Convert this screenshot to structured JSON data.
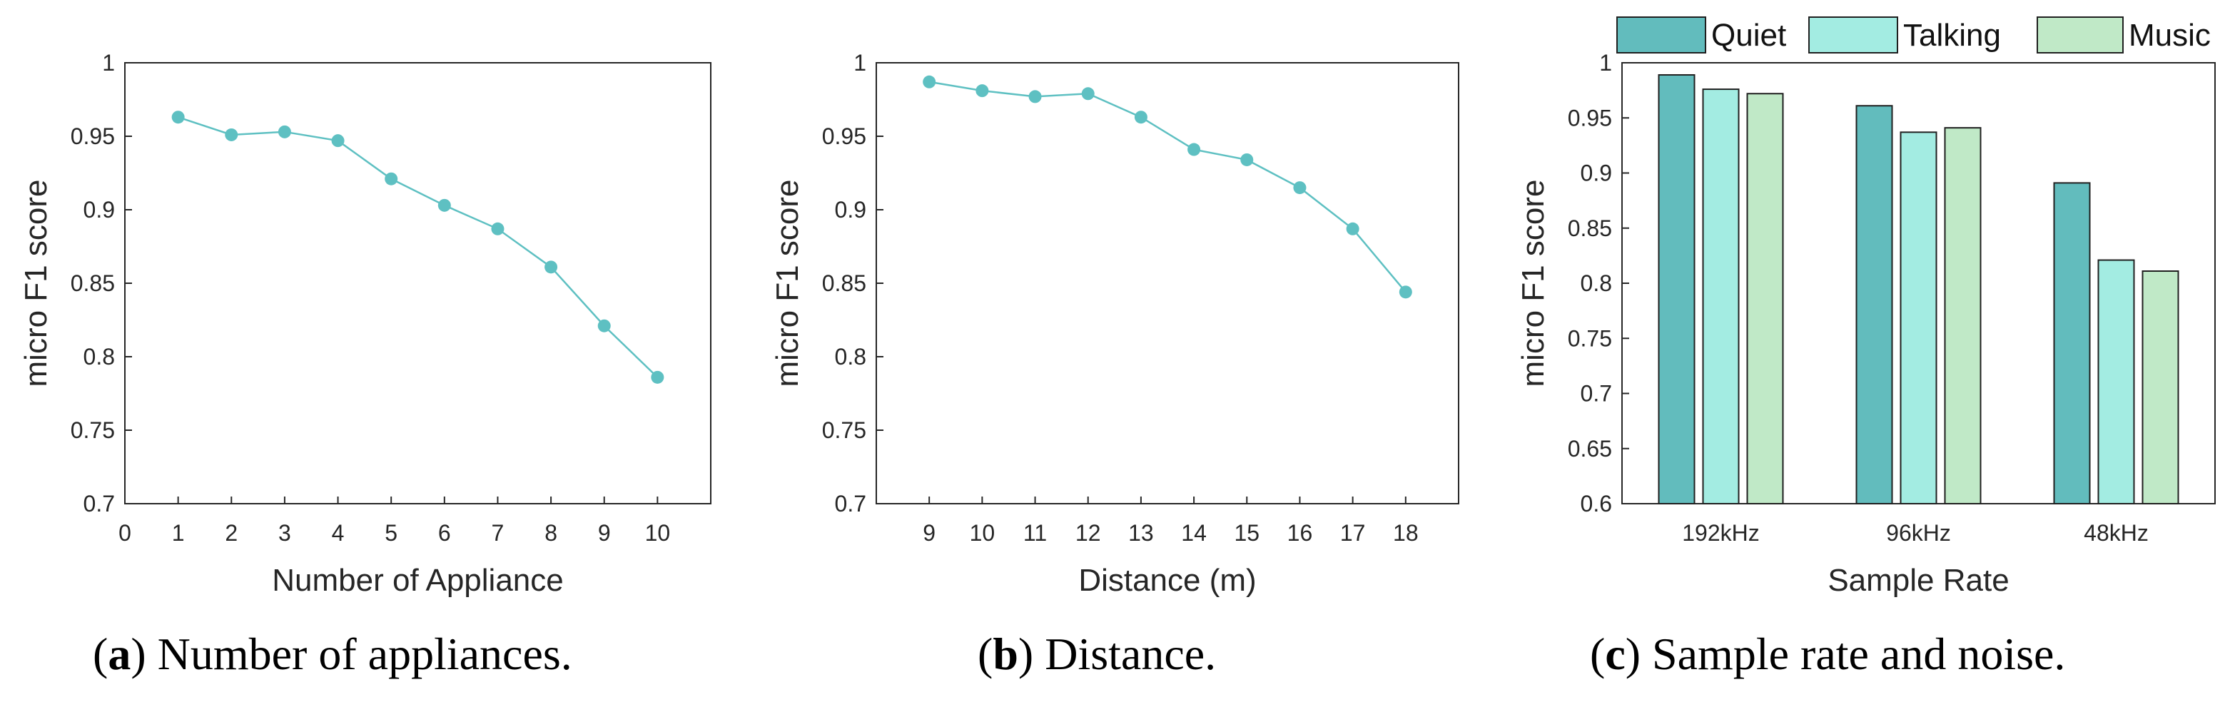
{
  "chart_data": [
    {
      "id": "a",
      "type": "line",
      "caption_label": "a",
      "caption_text": "Number of appliances.",
      "xlabel": "Number of Appliance",
      "ylabel": "micro F1 score",
      "xlim": [
        0,
        11
      ],
      "ylim": [
        0.7,
        1
      ],
      "xticks": [
        0,
        1,
        2,
        3,
        4,
        5,
        6,
        7,
        8,
        9,
        10
      ],
      "yticks": [
        0.7,
        0.75,
        0.8,
        0.85,
        0.9,
        0.95,
        1
      ],
      "ytick_labels": [
        "0.7",
        "0.75",
        "0.8",
        "0.85",
        "0.9",
        "0.95",
        "1"
      ],
      "x": [
        1,
        2,
        3,
        4,
        5,
        6,
        7,
        8,
        9,
        10
      ],
      "y": [
        0.963,
        0.951,
        0.953,
        0.947,
        0.921,
        0.903,
        0.887,
        0.861,
        0.821,
        0.786
      ],
      "color": "#5ec0c2",
      "grid": false
    },
    {
      "id": "b",
      "type": "line",
      "caption_label": "b",
      "caption_text": "Distance.",
      "xlabel": "Distance (m)",
      "ylabel": "micro F1 score",
      "xlim": [
        8,
        19
      ],
      "ylim": [
        0.7,
        1
      ],
      "xticks": [
        9,
        10,
        11,
        12,
        13,
        14,
        15,
        16,
        17,
        18
      ],
      "yticks": [
        0.7,
        0.75,
        0.8,
        0.85,
        0.9,
        0.95,
        1
      ],
      "ytick_labels": [
        "0.7",
        "0.75",
        "0.8",
        "0.85",
        "0.9",
        "0.95",
        "1"
      ],
      "x": [
        9,
        10,
        11,
        12,
        13,
        14,
        15,
        16,
        17,
        18
      ],
      "y": [
        0.987,
        0.981,
        0.977,
        0.979,
        0.963,
        0.941,
        0.934,
        0.915,
        0.887,
        0.844
      ],
      "color": "#5ec0c2",
      "grid": false
    },
    {
      "id": "c",
      "type": "bar",
      "caption_label": "c",
      "caption_text": "Sample rate and noise.",
      "xlabel": "Sample Rate",
      "ylabel": "micro F1 score",
      "ylim": [
        0.6,
        1
      ],
      "yticks": [
        0.6,
        0.65,
        0.7,
        0.75,
        0.8,
        0.85,
        0.9,
        0.95,
        1
      ],
      "ytick_labels": [
        "0.6",
        "0.65",
        "0.7",
        "0.75",
        "0.8",
        "0.85",
        "0.9",
        "0.95",
        "1"
      ],
      "categories": [
        "192kHz",
        "96kHz",
        "48kHz"
      ],
      "legend_position": "top",
      "series": [
        {
          "name": "Quiet",
          "values": [
            0.989,
            0.961,
            0.891
          ],
          "color": "#62bcbd"
        },
        {
          "name": "Talking",
          "values": [
            0.976,
            0.937,
            0.821
          ],
          "color": "#a3ece2"
        },
        {
          "name": "Music",
          "values": [
            0.972,
            0.941,
            0.811
          ],
          "color": "#c0e9c7"
        }
      ],
      "grid": false
    }
  ]
}
